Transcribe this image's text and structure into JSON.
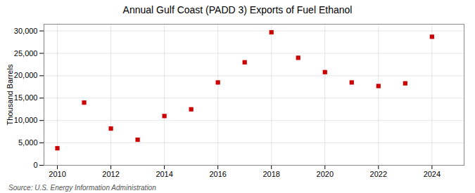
{
  "chart_data": {
    "type": "scatter",
    "title": "Annual Gulf Coast (PADD 3) Exports of Fuel Ethanol",
    "ylabel": "Thousand Barrels",
    "annotations": [
      "Source: U.S. Energy Information Administration"
    ],
    "x": [
      2010,
      2011,
      2012,
      2013,
      2014,
      2015,
      2016,
      2017,
      2018,
      2019,
      2020,
      2021,
      2022,
      2023,
      2024
    ],
    "values": [
      3800,
      14000,
      8200,
      5700,
      11000,
      12500,
      18500,
      23000,
      29700,
      24000,
      20800,
      18500,
      17700,
      18300,
      28700
    ],
    "color": "#cc0000",
    "marker": "square",
    "xlim": [
      2009.5,
      2025.2
    ],
    "ylim": [
      0,
      31500
    ],
    "xticks": [
      2010,
      2012,
      2014,
      2016,
      2018,
      2020,
      2022,
      2024
    ],
    "yticks": [
      0,
      {
        "value": 5000,
        "label": "5,000"
      },
      {
        "value": 10000,
        "label": "10,000"
      },
      {
        "value": 15000,
        "label": "15,000"
      },
      {
        "value": 20000,
        "label": "20,000"
      },
      {
        "value": 25000,
        "label": "25,000"
      },
      {
        "value": 30000,
        "label": "30,000"
      }
    ],
    "grid": true
  }
}
